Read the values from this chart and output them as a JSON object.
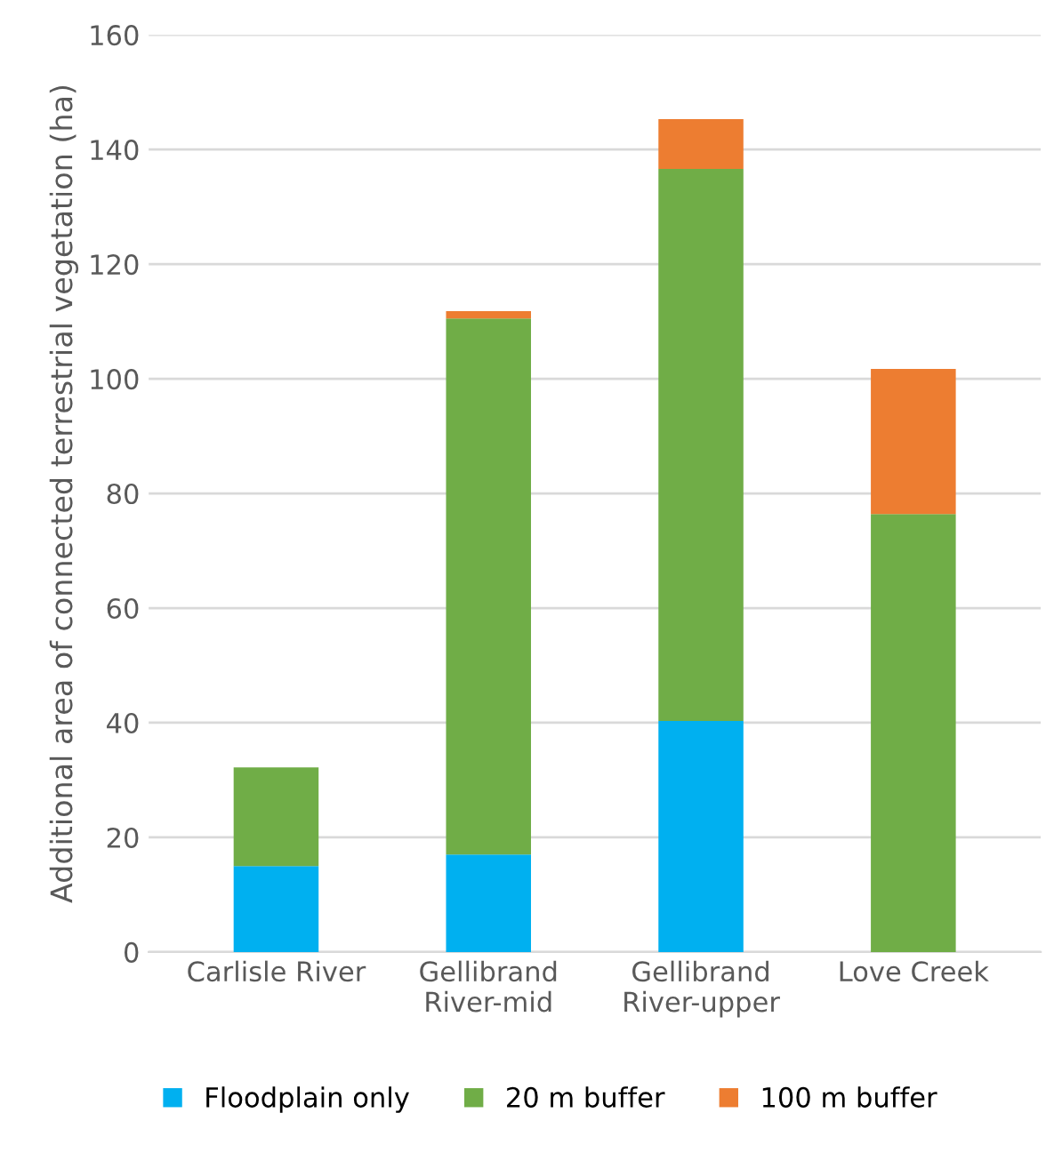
{
  "chart_data": {
    "type": "bar",
    "stacked": true,
    "ylabel": "Additional area of connected terrestrial vegetation (ha)",
    "categories": [
      "Carlisle River",
      "Gellibrand\nRiver-mid",
      "Gellibrand\nRiver-upper",
      "Love Creek"
    ],
    "series": [
      {
        "name": "Floodplain only",
        "color": "#00b0f0",
        "values": [
          15,
          17,
          40.3,
          0
        ]
      },
      {
        "name": "20 m buffer",
        "color": "#70ad47",
        "values": [
          17.2,
          93.5,
          96.3,
          76.4
        ]
      },
      {
        "name": "100 m buffer",
        "color": "#ed7d31",
        "values": [
          0,
          1.3,
          8.7,
          25.3
        ]
      }
    ],
    "ylim": [
      0,
      160
    ],
    "yticks": [
      0,
      20,
      40,
      60,
      80,
      100,
      120,
      140,
      160
    ],
    "grid": "y",
    "legend": "bottom"
  }
}
